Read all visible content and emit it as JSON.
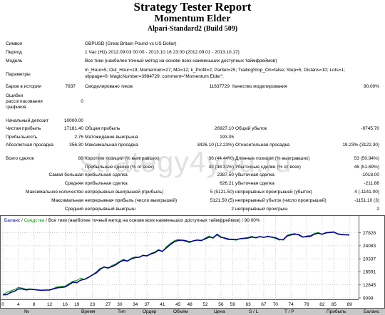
{
  "header": {
    "title": "Strategy Tester Report",
    "expert": "Momentum Elder",
    "build": "Alpari-Standard2 (Build 509)"
  },
  "info": {
    "symbol_label": "Символ",
    "symbol_value": "GBPUSD (Great Britain Pound vs US Dollar)",
    "period_label": "Период",
    "period_value": "1 Час (H1) 2012.09.03 00:00 - 2013.10.16 23:00 (2012.09.01 - 2013.10.17)",
    "model_label": "Модель",
    "model_value": "Все тики (наиболее точный метод на основе всех наименьших доступных таймфреймов)",
    "params_label": "Параметры",
    "params_line1": "In_Hour=5; Out_Hour=19; Momentum=27; MA=12; k_Profit=2; Paritet=25; TrailingStop_On=false; Step=5; Distans=10; Lots=1;",
    "params_line2": "slippage=0; MagicNumber=3984729; comment=\"Momentum Elder\";",
    "bars_label": "Баров в истории",
    "bars_value": "7937",
    "ticks_label": "Смоделировано тиков",
    "ticks_value": "11637729",
    "quality_label": "Качество моделирования",
    "quality_value": "90.00%",
    "errors_label_1": "Ошибки",
    "errors_label_2": "рассогласования",
    "errors_label_3": "графиков",
    "errors_value": "0"
  },
  "results": {
    "deposit_label": "Начальный депозит",
    "deposit_value": "10000.00",
    "net_label": "Чистая прибыль",
    "net_value": "17181.40",
    "gross_profit_label": "Общая прибыль",
    "gross_profit_value": "26927.10",
    "gross_loss_label": "Общий убыток",
    "gross_loss_value": "-9745.70",
    "pf_label": "Прибыльность",
    "pf_value": "2.76",
    "expected_label": "Матожидание выигрыша",
    "expected_value": "193.05",
    "abs_dd_label": "Абсолютная просадка",
    "abs_dd_value": "356.30",
    "max_dd_label": "Максимальная просадка",
    "max_dd_value": "3426.10 (12.23%)",
    "rel_dd_label": "Относительная просадка",
    "rel_dd_value": "19.23% (3122.30)",
    "total_label": "Всего сделок",
    "total_value": "89",
    "short_label": "Короткие позиции (% выигравших)",
    "short_value": "36 (44.44%)",
    "long_label": "Длинные позиции (% выигравших)",
    "long_value": "53 (50.94%)",
    "win_label": "Прибыльные сделки (% от всех)",
    "win_value": "43 (48.31%)",
    "lose_label": "Убыточные сделки (% от всех)",
    "lose_value": "46 (51.69%)",
    "largest_label": "Самая большая",
    "largest_profit_label": "прибыльная сделка",
    "largest_profit_value": "2387.50",
    "largest_loss_label": "убыточная сделка",
    "largest_loss_value": "-1018.00",
    "average_label": "Средняя",
    "average_profit_label": "прибыльная сделка",
    "average_profit_value": "626.21",
    "average_loss_label": "убыточная сделка",
    "average_loss_value": "-211.86",
    "maxcount_label": "Максимальное количество",
    "cons_wins_label": "непрерывных выигрышей (прибыль)",
    "cons_wins_value": "5 (5121.50)",
    "cons_losses_label": "непрерывных проигрышей (убыток)",
    "cons_losses_value": "4 (-1141.00)",
    "max_label": "Максимальная",
    "cons_profit_label": "непрерывная прибыль (число выигрышей)",
    "cons_profit_value": "5121.50 (5)",
    "cons_loss_label": "непрерывный убыток (число проигрышей)",
    "cons_loss_value": "-1151.10 (3)",
    "avg_label": "Средний",
    "avg_wins_label": "непрерывный выигрыш",
    "avg_wins_value": "2",
    "avg_losses_label": "непрерывный проигрыш",
    "avg_losses_value": "2"
  },
  "watermark": "strategy4you.ru",
  "chart_data": {
    "type": "line",
    "legend_balance": "Баланс",
    "legend_sep1": " / ",
    "legend_equity": "Средства",
    "legend_rest": " / Все тики (наиболее точный метод на основе всех наименьших доступных таймфреймов) / 90.00%",
    "balance_color": "#0000a0",
    "equity_color": "#00a000",
    "yticks": [
      9099,
      12845,
      16591,
      20337,
      24083,
      27828
    ],
    "ylim": [
      9099,
      30400
    ],
    "xlim": [
      0,
      91
    ],
    "xticks": [
      0,
      4,
      8,
      12,
      16,
      19,
      23,
      27,
      30,
      34,
      37,
      41,
      45,
      48,
      52,
      56,
      59,
      63,
      67,
      70,
      74,
      78,
      82,
      85,
      89
    ],
    "x": [
      0,
      1,
      2,
      3,
      4,
      5,
      6,
      7,
      8,
      9,
      10,
      11,
      12,
      13,
      14,
      15,
      16,
      17,
      18,
      19,
      20,
      21,
      22,
      23,
      24,
      25,
      26,
      27,
      28,
      29,
      30,
      31,
      32,
      33,
      34,
      35,
      36,
      37,
      38,
      39,
      40,
      41,
      42,
      43,
      44,
      45,
      46,
      47,
      48,
      49,
      50,
      51,
      52,
      53,
      54,
      55,
      56,
      57,
      58,
      59,
      60,
      61,
      62,
      63,
      64,
      65,
      66,
      67,
      68,
      69,
      70,
      71,
      72,
      73,
      74,
      75,
      76,
      77,
      78,
      79,
      80,
      81,
      82,
      83,
      84,
      85,
      86,
      87,
      88,
      89
    ],
    "balance": [
      10000,
      10050,
      10650,
      11000,
      11700,
      11650,
      11400,
      11600,
      11500,
      11380,
      11300,
      11360,
      11390,
      11700,
      12000,
      12100,
      12250,
      12900,
      13600,
      13500,
      14200,
      14450,
      15000,
      15700,
      16300,
      17300,
      18000,
      17700,
      18100,
      18600,
      19400,
      19900,
      19700,
      20300,
      20700,
      20800,
      21300,
      21200,
      21700,
      22100,
      22800,
      22500,
      23500,
      24400,
      25200,
      25600,
      25700,
      25500,
      25200,
      25500,
      25700,
      25600,
      26100,
      26600,
      26400,
      27300,
      26500,
      26300,
      26000,
      25950,
      25900,
      26100,
      26200,
      26300,
      26600,
      26400,
      26700,
      26500,
      26700,
      26600,
      26400,
      25900,
      25800,
      26900,
      27200,
      27400,
      27300,
      26600,
      26700,
      26800,
      27400,
      27700,
      27400,
      27800,
      27900,
      28000,
      27500,
      27300,
      27250,
      27181
    ],
    "equity": [
      10000,
      10700,
      11100,
      11500,
      12100,
      11900,
      11600,
      11700,
      11500,
      11400,
      11300,
      11350,
      11300,
      11800,
      12300,
      12400,
      12500,
      13200,
      13900,
      14100,
      14800,
      14400,
      15100,
      15700,
      16600,
      17600,
      17900,
      17600,
      18400,
      18900,
      19600,
      20200,
      19600,
      20500,
      20900,
      20700,
      21400,
      21100,
      21900,
      22300,
      23000,
      22400,
      23800,
      24700,
      25500,
      25900,
      25600,
      25300,
      25000,
      25600,
      25800,
      25500,
      26300,
      26900,
      26200,
      27500,
      26700,
      26100,
      25800,
      25800,
      25700,
      26200,
      26300,
      26500,
      26800,
      26300,
      26800,
      26400,
      26900,
      26500,
      26200,
      25700,
      25900,
      27100,
      27400,
      27600,
      27100,
      26500,
      26900,
      27000,
      27600,
      27900,
      27300,
      27900,
      28000,
      28100,
      27400,
      27200,
      27200,
      27181
    ]
  },
  "table_header": [
    "№",
    "Время",
    "Тип",
    "Ордер",
    "Объём",
    "Цена",
    "S / L",
    "T / P",
    "Прибыль",
    "Баланс"
  ]
}
